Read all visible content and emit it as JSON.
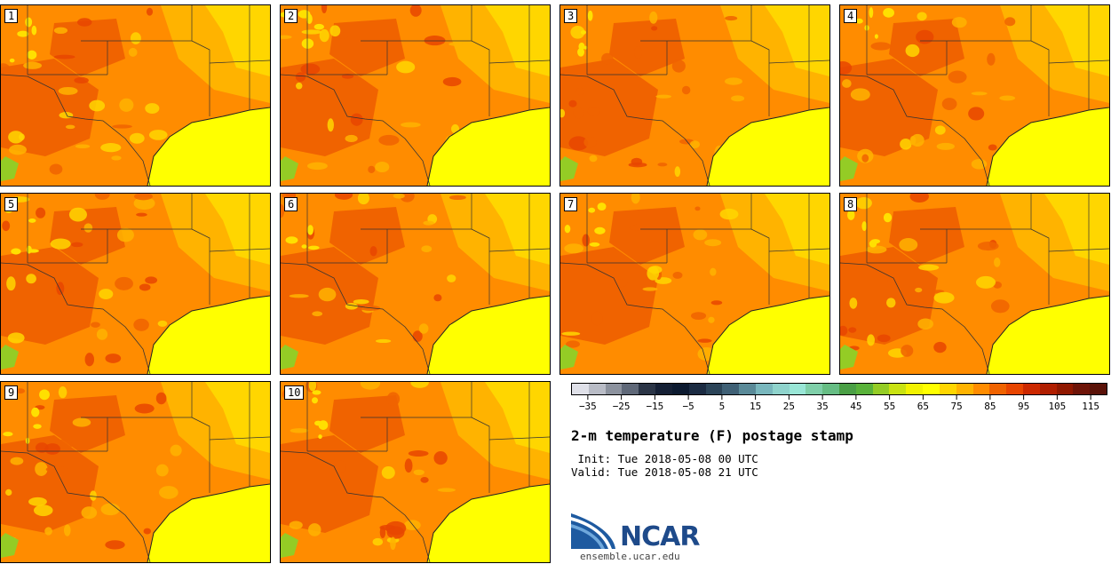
{
  "panels": [
    {
      "label": "1"
    },
    {
      "label": "2"
    },
    {
      "label": "3"
    },
    {
      "label": "4"
    },
    {
      "label": "5"
    },
    {
      "label": "6"
    },
    {
      "label": "7"
    },
    {
      "label": "8"
    },
    {
      "label": "9"
    },
    {
      "label": "10"
    }
  ],
  "colorbar": {
    "colors": [
      "#dfe0e8",
      "#b9bcc6",
      "#8c929e",
      "#5f6878",
      "#2b3546",
      "#152035",
      "#0c1a30",
      "#1b2b42",
      "#2b4458",
      "#3f6075",
      "#5a8a98",
      "#79b7bd",
      "#8fd3cc",
      "#99e6d6",
      "#7fcfa9",
      "#66bd84",
      "#4a9f45",
      "#59b23a",
      "#94cc25",
      "#c9e212",
      "#f2f200",
      "#ffff00",
      "#ffd600",
      "#ffb300",
      "#ff8c00",
      "#f06300",
      "#e84500",
      "#cc2800",
      "#b01e00",
      "#901800",
      "#6e1408",
      "#5a1208"
    ],
    "tick_labels": [
      "−35",
      "−25",
      "−15",
      "−5",
      "5",
      "15",
      "25",
      "35",
      "45",
      "55",
      "65",
      "75",
      "85",
      "95",
      "105",
      "115"
    ]
  },
  "title": "2-m temperature (F) postage stamp",
  "init_line": " Init: Tue 2018-05-08 00 UTC",
  "valid_line": "Valid: Tue 2018-05-08 21 UTC",
  "logo": {
    "text": "NCAR",
    "site": "ensemble.ucar.edu"
  },
  "colors": {
    "gulf": "#ffff00",
    "hot": "#ff8c00",
    "hotter": "#f06300",
    "hottest": "#e84500",
    "warm": "#ffb300",
    "mild": "#ffd600",
    "green": "#94cc25"
  }
}
